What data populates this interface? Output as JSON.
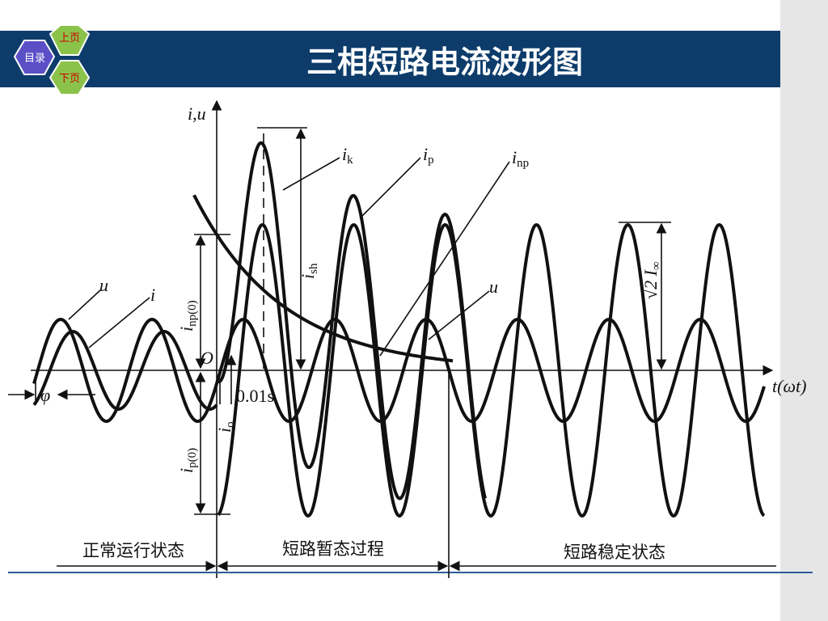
{
  "header": {
    "title": "三相短路电流波形图",
    "nav": {
      "prev": "上页",
      "menu": "目录",
      "next": "下页"
    }
  },
  "diagram": {
    "axis_labels": {
      "y": "i,u",
      "x": "t(ωt)",
      "origin": "O"
    },
    "curve_labels": {
      "ik": {
        "main": "i",
        "sub": "k"
      },
      "ip": {
        "main": "i",
        "sub": "p"
      },
      "inp": {
        "main": "i",
        "sub": "np"
      },
      "u_before": "u",
      "i_before": "i",
      "u_after": "u"
    },
    "dimension_labels": {
      "inp0": {
        "main": "i",
        "sub": "np(0)"
      },
      "ish": {
        "main": "i",
        "sub": "sh"
      },
      "ip0": {
        "main": "i",
        "sub": "p(0)"
      },
      "io": {
        "main": "i",
        "sub": "o"
      },
      "time": "0.01s",
      "phi": "φ",
      "steady": {
        "main": "√2 I",
        "sub": "∞"
      }
    },
    "phases": [
      "正常运行状态",
      "短路暂态过程",
      "短路稳定状态"
    ]
  }
}
